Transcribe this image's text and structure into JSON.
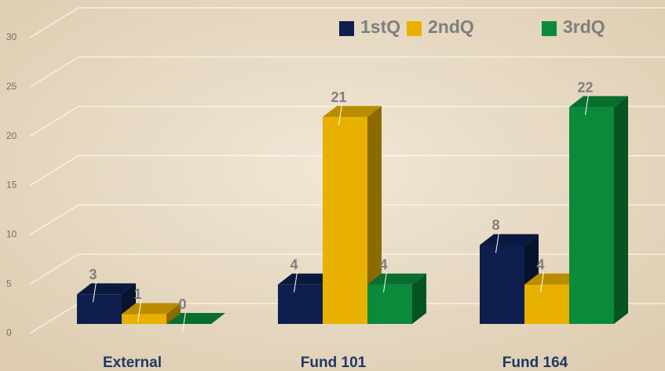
{
  "chart_data": {
    "type": "bar3d",
    "categories": [
      "External",
      "Fund 101",
      "Fund 164"
    ],
    "series": [
      {
        "name": "1stQ",
        "color": "#0e1f4d",
        "values": [
          3,
          4,
          8
        ]
      },
      {
        "name": "2ndQ",
        "color": "#e8b000",
        "values": [
          1,
          21,
          4
        ]
      },
      {
        "name": "3rdQ",
        "color": "#0a8a3a",
        "values": [
          0,
          4,
          22
        ]
      }
    ],
    "ylim": [
      0,
      30
    ],
    "yticks": [
      0,
      5,
      10,
      15,
      20,
      25,
      30
    ],
    "grid": true,
    "legend": "top-right"
  }
}
